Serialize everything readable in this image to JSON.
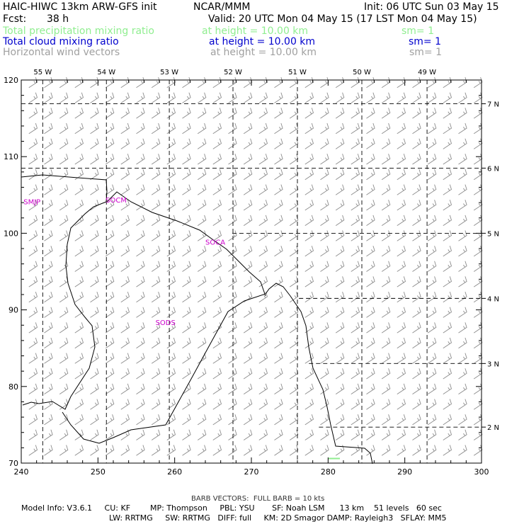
{
  "header": {
    "title": "HAIC-HIWC 13km ARW-GFS init",
    "org": "NCAR/MMM",
    "init": "Init: 06 UTC Sun 03 May 15",
    "fcst_label": "Fcst:",
    "fcst_value": "38 h",
    "valid": "Valid: 20 UTC Mon 04 May 15 (17 LST Mon 04 May 15)"
  },
  "fields": [
    {
      "name": "Total precipitation mixing ratio",
      "height": "at height = 10.00 km",
      "sm": "sm= 1",
      "color": "#90ee90"
    },
    {
      "name": "Total cloud mixing ratio",
      "height": "at height = 10.00 km",
      "sm": "sm= 1",
      "color": "#0000cd"
    },
    {
      "name": "Horizontal wind vectors",
      "height": "at height = 10.00 km",
      "sm": "sm= 1",
      "color": "#a0a0a0"
    }
  ],
  "chart_data": {
    "type": "map",
    "x_ticks": [
      "240",
      "250",
      "260",
      "270",
      "280",
      "290",
      "300"
    ],
    "y_ticks": [
      "70",
      "80",
      "90",
      "100",
      "110",
      "120"
    ],
    "xlim": [
      240,
      300
    ],
    "ylim": [
      70,
      120
    ],
    "lon_labels": [
      "55 W",
      "54 W",
      "53 W",
      "52 W",
      "51 W",
      "50 W",
      "49 W"
    ],
    "lat_labels": [
      "2 N",
      "3 N",
      "4 N",
      "5 N",
      "6 N",
      "7 N"
    ],
    "region_labels": [
      {
        "text": "SMJP",
        "x": 240.3,
        "y": 103.8
      },
      {
        "text": "SOCM",
        "x": 251.0,
        "y": 104.0
      },
      {
        "text": "SOCA",
        "x": 264.0,
        "y": 98.5
      },
      {
        "text": "SODS",
        "x": 257.5,
        "y": 88.0
      }
    ],
    "region_label_color": "#cc00cc",
    "precip_marks": [
      {
        "x": 280.8,
        "y": 70.6
      }
    ],
    "wind": {
      "u_kts": -15,
      "v_kts": -10,
      "grid_step": 2
    }
  },
  "footer": {
    "barb_note": "BARB VECTORS:  FULL BARB = 10 kts",
    "model_info_line1": "Model Info: V3.6.1     CU: KF        MP: Thompson     PBL: YSU       SF: Noah LSM      13 km    51 levels   60 sec",
    "model_info_line2": "LW: RRTMG     SW: RRTMG   DIFF: full     KM: 2D Smagor DAMP: Rayleigh3   SFLAY: MM5"
  }
}
